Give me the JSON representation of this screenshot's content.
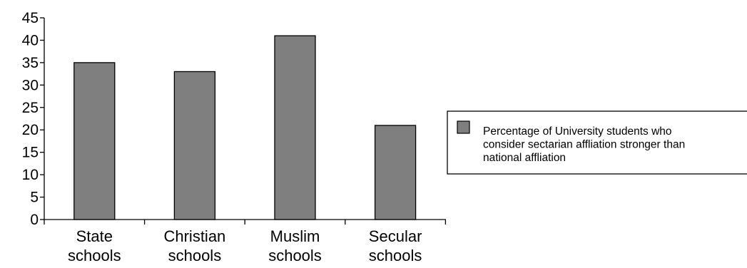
{
  "chart_data": {
    "type": "bar",
    "title": "",
    "xlabel": "",
    "ylabel": "",
    "categories": [
      [
        "State",
        "schools"
      ],
      [
        "Christian",
        "schools"
      ],
      [
        "Muslim",
        "schools"
      ],
      [
        "Secular",
        "schools"
      ]
    ],
    "series": [
      {
        "name_lines": [
          "Percentage of University students who",
          "consider sectarian affliation stronger than",
          "national affliation"
        ],
        "values": [
          35,
          33,
          41,
          21
        ],
        "color": "#7f7f7f"
      }
    ],
    "ylim": [
      0,
      45
    ],
    "yticks": [
      "0",
      "5",
      "10",
      "15",
      "20",
      "25",
      "30",
      "35",
      "40",
      "45"
    ],
    "grid": false,
    "legend_position": "right"
  }
}
